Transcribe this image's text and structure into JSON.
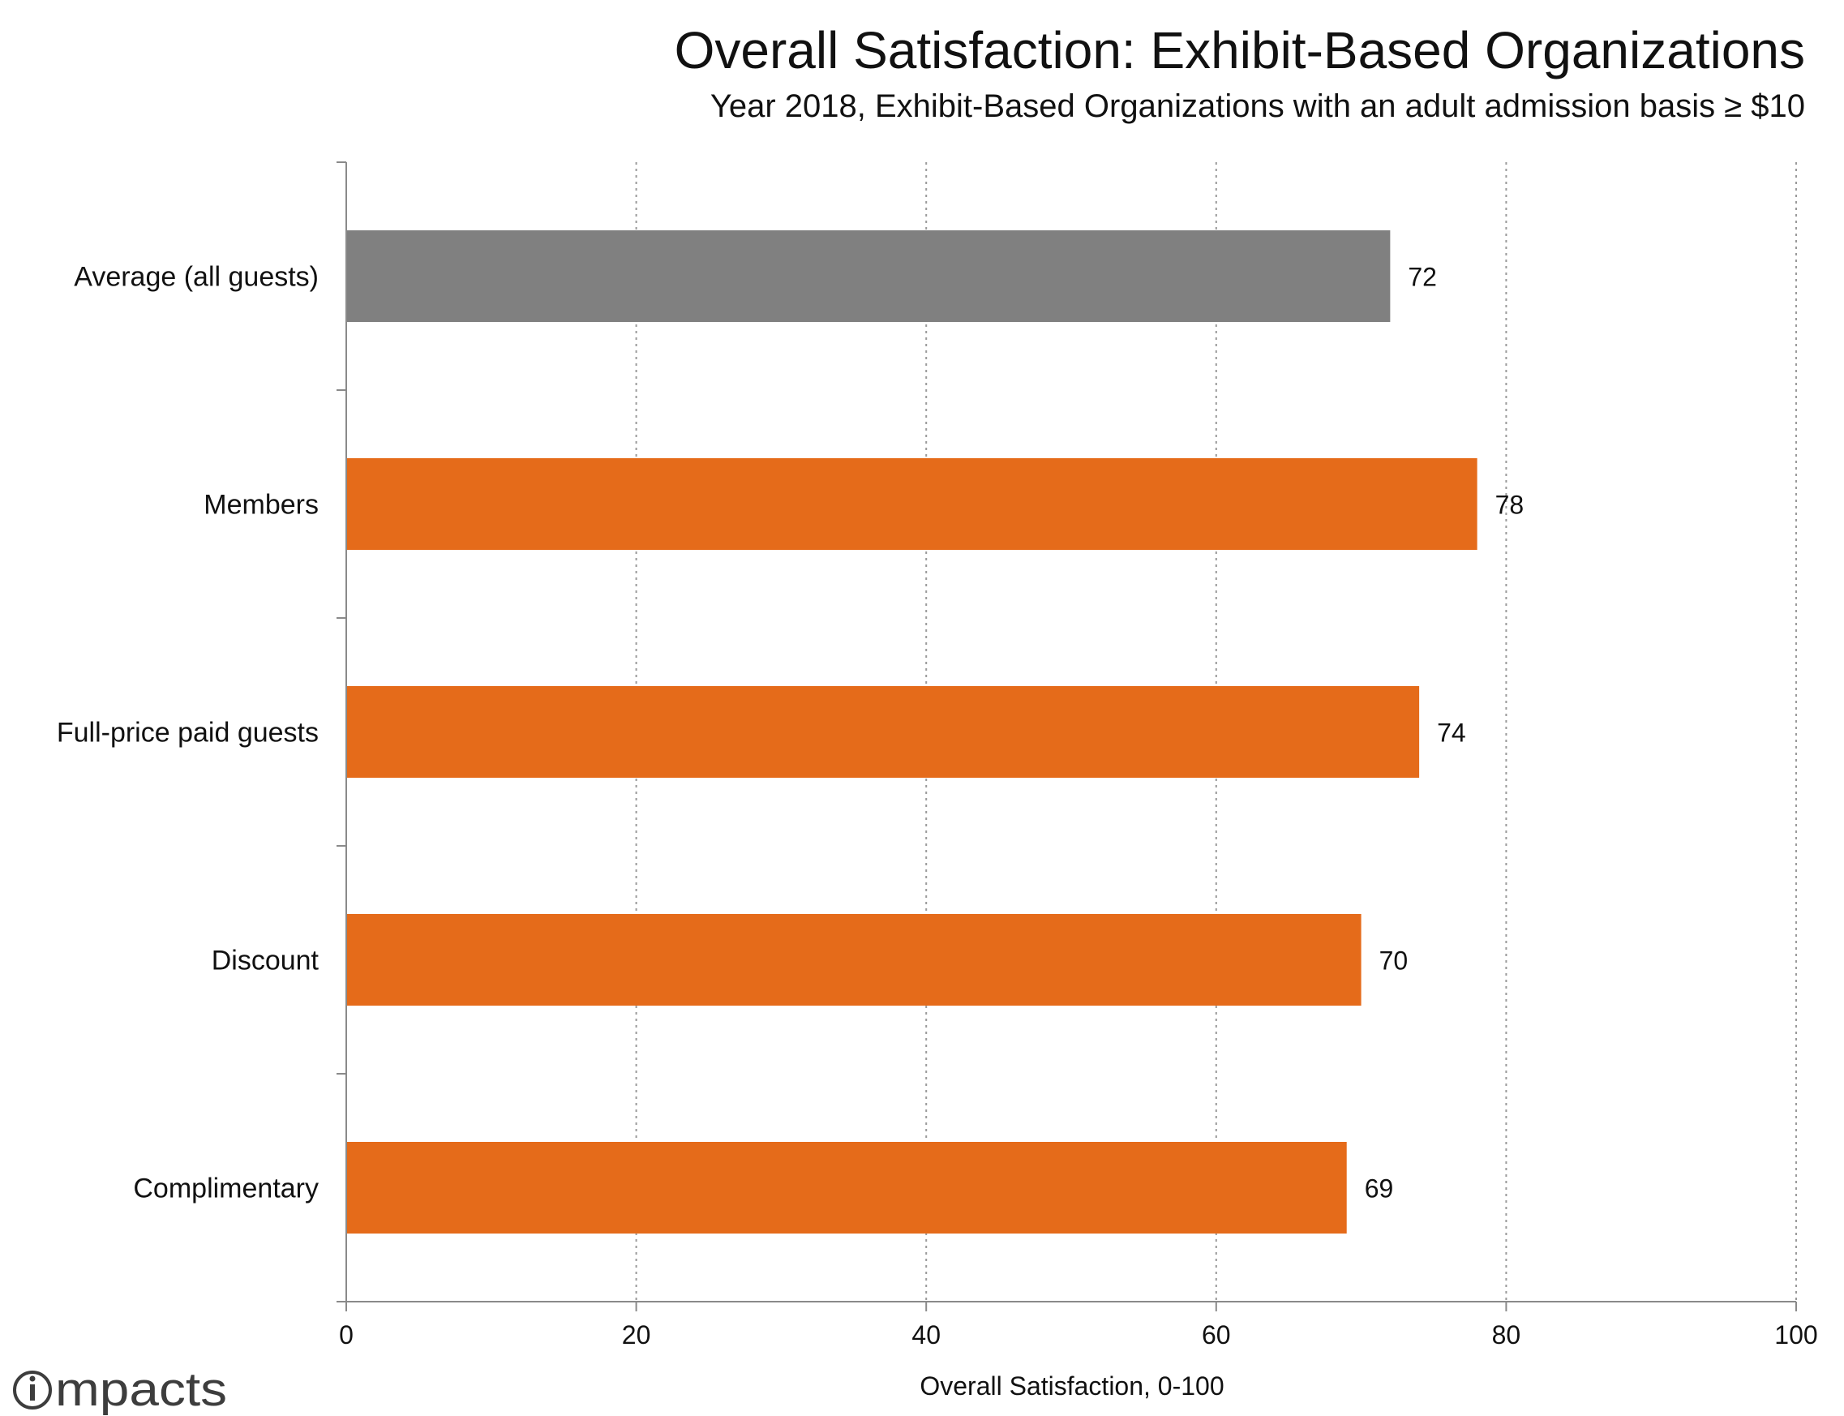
{
  "chart_data": {
    "type": "bar",
    "orientation": "horizontal",
    "title": "Overall Satisfaction: Exhibit-Based Organizations",
    "subtitle": "Year 2018, Exhibit-Based Organizations with an adult admission basis ≥ $10",
    "xlabel": "Overall Satisfaction, 0-100",
    "ylabel": "",
    "xlim": [
      0,
      100
    ],
    "x_ticks": [
      0,
      20,
      40,
      60,
      80,
      100
    ],
    "x_tick_labels": [
      "0",
      "20",
      "40",
      "60",
      "80",
      "100"
    ],
    "grid": "vertical dotted",
    "legend": "none",
    "categories": [
      "Average (all guests)",
      "Members",
      "Full-price paid guests",
      "Discount",
      "Complimentary"
    ],
    "values": [
      72,
      78,
      74,
      70,
      69
    ],
    "data_labels": [
      "72",
      "78",
      "74",
      "70",
      "69"
    ],
    "bar_colors": [
      "#808080",
      "#E56B1A",
      "#E56B1A",
      "#E56B1A",
      "#E56B1A"
    ]
  },
  "logo": {
    "text": "impacts",
    "color": "#3d3d3d"
  },
  "colors": {
    "average_bar": "#808080",
    "segment_bar": "#E56B1A",
    "text": "#111111",
    "axis": "#8a8a8a",
    "grid": "#9a9a9a",
    "background": "#ffffff"
  }
}
